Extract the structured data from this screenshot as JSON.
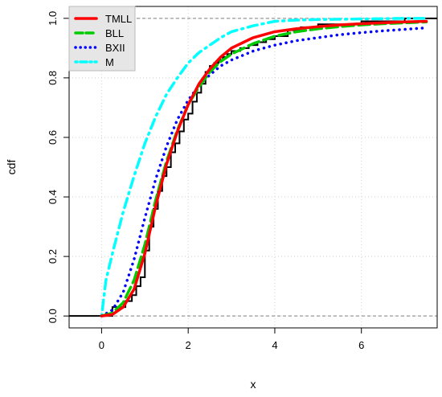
{
  "chart_data": {
    "type": "line",
    "xlabel": "x",
    "ylabel": "cdf",
    "xlim": [
      -0.75,
      7.75
    ],
    "ylim": [
      -0.04,
      1.04
    ],
    "xticks": [
      0,
      2,
      4,
      6
    ],
    "yticks": [
      0.0,
      0.2,
      0.4,
      0.6,
      0.8,
      1.0
    ],
    "xtick_labels": [
      "0",
      "2",
      "4",
      "6"
    ],
    "ytick_labels": [
      "0.0",
      "0.2",
      "0.4",
      "0.6",
      "0.8",
      "1.0"
    ],
    "grid": true,
    "legend_position": "top-left",
    "reference_lines": [
      0,
      1
    ],
    "empirical_cdf": {
      "x": [
        -0.75,
        0.25,
        0.55,
        0.7,
        0.8,
        0.9,
        1.0,
        1.1,
        1.2,
        1.3,
        1.4,
        1.5,
        1.6,
        1.7,
        1.8,
        1.9,
        2.0,
        2.1,
        2.2,
        2.3,
        2.4,
        2.5,
        2.6,
        2.7,
        2.8,
        2.9,
        3.0,
        3.2,
        3.4,
        3.6,
        3.8,
        4.0,
        4.3,
        4.6,
        5.0,
        5.5,
        6.0,
        7.0,
        7.75
      ],
      "y": [
        0.0,
        0.03,
        0.05,
        0.07,
        0.1,
        0.13,
        0.22,
        0.3,
        0.36,
        0.42,
        0.47,
        0.5,
        0.55,
        0.58,
        0.62,
        0.66,
        0.68,
        0.72,
        0.75,
        0.78,
        0.82,
        0.84,
        0.85,
        0.86,
        0.87,
        0.88,
        0.89,
        0.9,
        0.91,
        0.92,
        0.93,
        0.94,
        0.96,
        0.97,
        0.98,
        0.98,
        0.99,
        1.0,
        1.0
      ]
    },
    "series": [
      {
        "name": "TMLL",
        "color": "#ff0000",
        "dash": "solid",
        "x": [
          0.0,
          0.25,
          0.5,
          0.75,
          1.0,
          1.25,
          1.5,
          1.75,
          2.0,
          2.25,
          2.5,
          2.75,
          3.0,
          3.5,
          4.0,
          4.5,
          5.0,
          5.5,
          6.0,
          6.5,
          7.0,
          7.5
        ],
        "y": [
          0.0,
          0.005,
          0.03,
          0.09,
          0.21,
          0.37,
          0.51,
          0.62,
          0.71,
          0.78,
          0.83,
          0.87,
          0.9,
          0.935,
          0.955,
          0.965,
          0.972,
          0.978,
          0.982,
          0.985,
          0.988,
          0.99
        ]
      },
      {
        "name": "BLL",
        "color": "#00cc00",
        "dash": "longdash",
        "x": [
          0.0,
          0.25,
          0.5,
          0.75,
          1.0,
          1.25,
          1.5,
          1.75,
          2.0,
          2.25,
          2.5,
          2.75,
          3.0,
          3.5,
          4.0,
          4.5,
          5.0,
          5.5,
          6.0,
          6.5,
          7.0,
          7.5
        ],
        "y": [
          0.0,
          0.01,
          0.045,
          0.12,
          0.24,
          0.39,
          0.52,
          0.625,
          0.71,
          0.77,
          0.82,
          0.855,
          0.88,
          0.915,
          0.94,
          0.955,
          0.965,
          0.972,
          0.978,
          0.982,
          0.985,
          0.988
        ]
      },
      {
        "name": "BXII",
        "color": "#0000ff",
        "dash": "dotted",
        "x": [
          0.0,
          0.25,
          0.5,
          0.75,
          1.0,
          1.25,
          1.5,
          1.75,
          2.0,
          2.25,
          2.5,
          2.75,
          3.0,
          3.5,
          4.0,
          4.5,
          5.0,
          5.5,
          6.0,
          6.5,
          7.0,
          7.5
        ],
        "y": [
          0.0,
          0.02,
          0.08,
          0.19,
          0.33,
          0.46,
          0.57,
          0.66,
          0.725,
          0.775,
          0.81,
          0.84,
          0.86,
          0.89,
          0.91,
          0.925,
          0.935,
          0.945,
          0.952,
          0.958,
          0.963,
          0.968
        ]
      },
      {
        "name": "M",
        "color": "#00ffff",
        "dash": "dotdash",
        "x": [
          0.0,
          0.1,
          0.25,
          0.5,
          0.75,
          1.0,
          1.25,
          1.5,
          1.75,
          2.0,
          2.25,
          2.5,
          2.75,
          3.0,
          3.5,
          4.0,
          4.5,
          5.0,
          6.0,
          7.0,
          7.5
        ],
        "y": [
          0.0,
          0.12,
          0.21,
          0.35,
          0.47,
          0.58,
          0.67,
          0.745,
          0.8,
          0.85,
          0.885,
          0.91,
          0.935,
          0.955,
          0.975,
          0.99,
          0.994,
          0.996,
          0.998,
          1.0,
          1.0
        ]
      }
    ]
  }
}
